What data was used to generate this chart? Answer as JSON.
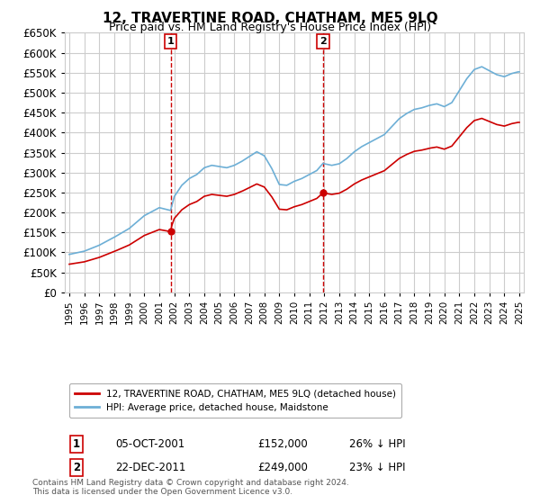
{
  "title": "12, TRAVERTINE ROAD, CHATHAM, ME5 9LQ",
  "subtitle": "Price paid vs. HM Land Registry's House Price Index (HPI)",
  "legend_line1": "12, TRAVERTINE ROAD, CHATHAM, ME5 9LQ (detached house)",
  "legend_line2": "HPI: Average price, detached house, Maidstone",
  "sale1_date": "05-OCT-2001",
  "sale1_price": 152000,
  "sale1_label": "1",
  "sale1_pct": "26% ↓ HPI",
  "sale2_date": "22-DEC-2011",
  "sale2_price": 249000,
  "sale2_label": "2",
  "sale2_pct": "23% ↓ HPI",
  "footnote": "Contains HM Land Registry data © Crown copyright and database right 2024.\nThis data is licensed under the Open Government Licence v3.0.",
  "hpi_color": "#6dafd6",
  "sale_color": "#cc0000",
  "vline_color": "#cc0000",
  "grid_color": "#cccccc",
  "bg_color": "#ffffff",
  "ylim_min": 0,
  "ylim_max": 650000,
  "ytick_step": 50000,
  "xstart": 1995,
  "xend": 2025
}
